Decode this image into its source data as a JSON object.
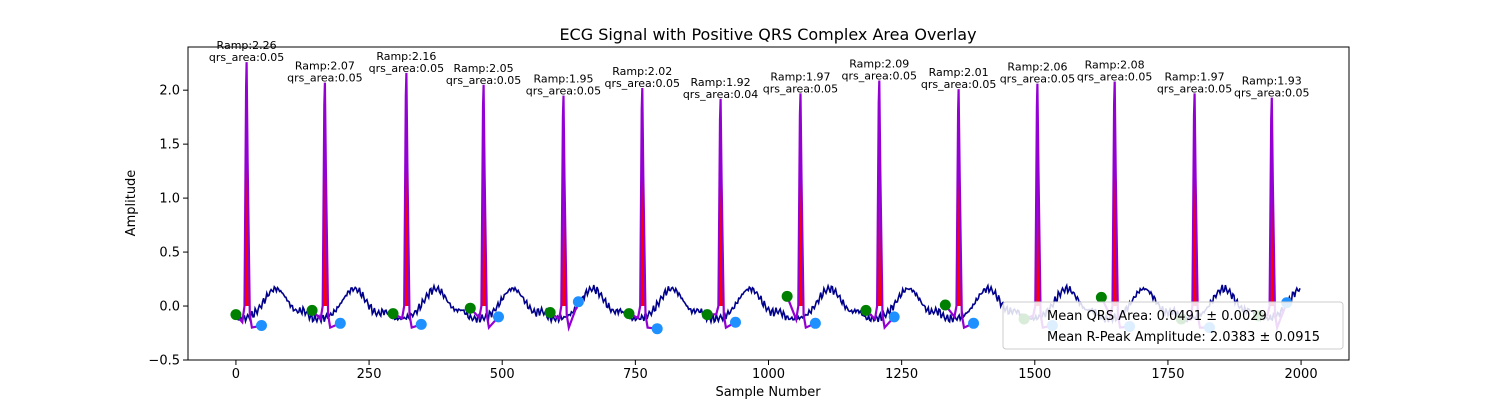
{
  "chart_data": {
    "type": "line",
    "title": "ECG Signal with Positive QRS Complex Area Overlay",
    "xlabel": "Sample Number",
    "ylabel": "Amplitude",
    "xlim": [
      -90,
      2090
    ],
    "ylim": [
      -0.5,
      2.4
    ],
    "x_ticks": [
      0,
      250,
      500,
      750,
      1000,
      1250,
      1500,
      1750,
      2000
    ],
    "x_tick_labels": [
      "0",
      "250",
      "500",
      "750",
      "1000",
      "1250",
      "1500",
      "1750",
      "2000"
    ],
    "y_ticks": [
      -0.5,
      0.0,
      0.5,
      1.0,
      1.5,
      2.0
    ],
    "y_tick_labels": [
      "−0.5",
      "0.0",
      "0.5",
      "1.0",
      "1.5",
      "2.0"
    ],
    "grid": false,
    "colors": {
      "signal": "#00008b",
      "qrs_line": "#9400d3",
      "qrs_fill": "#ff0000",
      "onset_marker": "#008000",
      "offset_marker": "#1e90ff"
    },
    "beats": [
      {
        "r_sample": 20,
        "r_amp": 2.26,
        "label1": "Ramp:2.26",
        "label2": "qrs_area:0.05",
        "onset": [
          0,
          -0.08
        ],
        "offset": [
          48,
          -0.18
        ]
      },
      {
        "r_sample": 167,
        "r_amp": 2.07,
        "label1": "Ramp:2.07",
        "label2": "qrs_area:0.05",
        "onset": [
          143,
          -0.04
        ],
        "offset": [
          196,
          -0.16
        ]
      },
      {
        "r_sample": 320,
        "r_amp": 2.16,
        "label1": "Ramp:2.16",
        "label2": "qrs_area:0.05",
        "onset": [
          295,
          -0.07
        ],
        "offset": [
          348,
          -0.17
        ]
      },
      {
        "r_sample": 465,
        "r_amp": 2.05,
        "label1": "Ramp:2.05",
        "label2": "qrs_area:0.05",
        "onset": [
          440,
          -0.02
        ],
        "offset": [
          493,
          -0.1
        ]
      },
      {
        "r_sample": 615,
        "r_amp": 1.95,
        "label1": "Ramp:1.95",
        "label2": "qrs_area:0.05",
        "onset": [
          590,
          -0.06
        ],
        "offset": [
          643,
          0.04
        ]
      },
      {
        "r_sample": 763,
        "r_amp": 2.02,
        "label1": "Ramp:2.02",
        "label2": "qrs_area:0.05",
        "onset": [
          738,
          -0.07
        ],
        "offset": [
          791,
          -0.21
        ]
      },
      {
        "r_sample": 910,
        "r_amp": 1.92,
        "label1": "Ramp:1.92",
        "label2": "qrs_area:0.04",
        "onset": [
          885,
          -0.08
        ],
        "offset": [
          938,
          -0.15
        ]
      },
      {
        "r_sample": 1060,
        "r_amp": 1.97,
        "label1": "Ramp:1.97",
        "label2": "qrs_area:0.05",
        "onset": [
          1035,
          0.09
        ],
        "offset": [
          1088,
          -0.16
        ]
      },
      {
        "r_sample": 1208,
        "r_amp": 2.09,
        "label1": "Ramp:2.09",
        "label2": "qrs_area:0.05",
        "onset": [
          1183,
          -0.04
        ],
        "offset": [
          1236,
          -0.1
        ]
      },
      {
        "r_sample": 1357,
        "r_amp": 2.01,
        "label1": "Ramp:2.01",
        "label2": "qrs_area:0.05",
        "onset": [
          1332,
          0.01
        ],
        "offset": [
          1385,
          -0.16
        ]
      },
      {
        "r_sample": 1505,
        "r_amp": 2.06,
        "label1": "Ramp:2.06",
        "label2": "qrs_area:0.05",
        "onset": [
          1480,
          -0.12
        ],
        "offset": [
          1533,
          -0.18
        ]
      },
      {
        "r_sample": 1650,
        "r_amp": 2.08,
        "label1": "Ramp:2.08",
        "label2": "qrs_area:0.05",
        "onset": [
          1625,
          0.08
        ],
        "offset": [
          1678,
          -0.19
        ]
      },
      {
        "r_sample": 1800,
        "r_amp": 1.97,
        "label1": "Ramp:1.97",
        "label2": "qrs_area:0.05",
        "onset": [
          1775,
          -0.12
        ],
        "offset": [
          1828,
          -0.2
        ]
      },
      {
        "r_sample": 1945,
        "r_amp": 1.93,
        "label1": "Ramp:1.93",
        "label2": "qrs_area:0.05",
        "onset": [
          1920,
          -0.09
        ],
        "offset": [
          1973,
          0.03
        ]
      }
    ],
    "legend": {
      "placement": "lower-right",
      "lines": [
        "Mean QRS Area: 0.0491 ± 0.0029",
        "Mean R-Peak Amplitude: 2.0383 ± 0.0915"
      ]
    }
  }
}
